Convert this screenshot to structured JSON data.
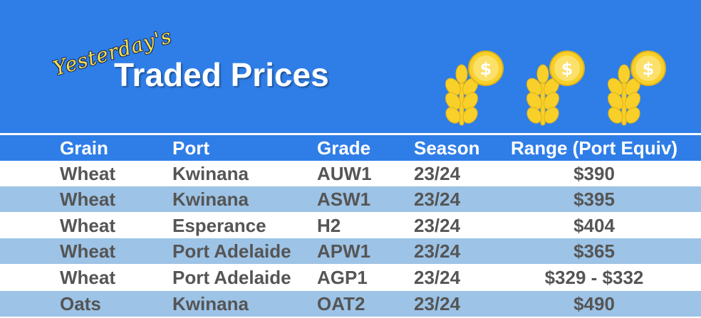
{
  "banner": {
    "subtitle": "Yesterday's",
    "title": "Traded Prices",
    "icons": [
      "wheat-coin-icon",
      "wheat-coin-icon",
      "wheat-coin-icon"
    ],
    "background_color": "#2f7ee8",
    "accent_color": "#f9d02a"
  },
  "table": {
    "headers": {
      "grain": "Grain",
      "port": "Port",
      "grade": "Grade",
      "season": "Season",
      "range": "Range (Port Equiv)"
    },
    "rows": [
      {
        "grain": "Wheat",
        "port": "Kwinana",
        "grade": "AUW1",
        "season": "23/24",
        "range": "$390"
      },
      {
        "grain": "Wheat",
        "port": "Kwinana",
        "grade": "ASW1",
        "season": "23/24",
        "range": "$395"
      },
      {
        "grain": "Wheat",
        "port": "Esperance",
        "grade": "H2",
        "season": "23/24",
        "range": "$404"
      },
      {
        "grain": "Wheat",
        "port": "Port Adelaide",
        "grade": "APW1",
        "season": "23/24",
        "range": "$365"
      },
      {
        "grain": "Wheat",
        "port": "Port Adelaide",
        "grade": "AGP1",
        "season": "23/24",
        "range": "$329 - $332"
      },
      {
        "grain": "Oats",
        "port": "Kwinana",
        "grade": "OAT2",
        "season": "23/24",
        "range": "$490"
      }
    ],
    "row_colors": [
      "#ffffff",
      "#9dc3e6"
    ]
  }
}
